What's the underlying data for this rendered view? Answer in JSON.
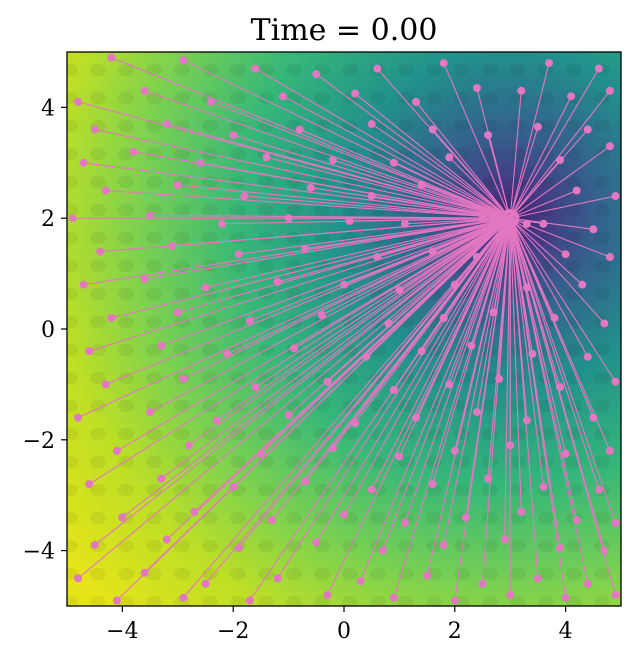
{
  "chart_data": {
    "type": "scatter",
    "title": "Time = 0.00",
    "xlabel": "",
    "ylabel": "",
    "xlim": [
      -5,
      5
    ],
    "ylim": [
      -5,
      5
    ],
    "x_ticks": [
      {
        "value": -4,
        "label": "−4"
      },
      {
        "value": -2,
        "label": "−2"
      },
      {
        "value": 0,
        "label": "0"
      },
      {
        "value": 2,
        "label": "2"
      },
      {
        "value": 4,
        "label": "4"
      }
    ],
    "y_ticks": [
      {
        "value": 4,
        "label": "4"
      },
      {
        "value": 2,
        "label": "2"
      },
      {
        "value": 0,
        "label": "0"
      },
      {
        "value": -2,
        "label": "−2"
      },
      {
        "value": -4,
        "label": "−4"
      }
    ],
    "background": "filled contour of a potential field with minimum at (3, 2); colormap viridis (low = dark purple, high = yellow)",
    "field_minimum": [
      3,
      2
    ],
    "grid": false,
    "legend": "none",
    "colors": {
      "particles": "#e377c2",
      "contour_low": "#3b2f7a",
      "contour_high": "#e5e41f"
    },
    "particles": [
      [
        -4.2,
        4.9
      ],
      [
        -2.9,
        4.85
      ],
      [
        -1.6,
        4.7
      ],
      [
        -0.5,
        4.6
      ],
      [
        0.6,
        4.7
      ],
      [
        1.8,
        4.8
      ],
      [
        3.7,
        4.8
      ],
      [
        4.6,
        4.7
      ],
      [
        -4.8,
        4.1
      ],
      [
        -3.6,
        4.3
      ],
      [
        -2.4,
        4.1
      ],
      [
        -1.1,
        4.2
      ],
      [
        0.2,
        4.25
      ],
      [
        1.3,
        4.1
      ],
      [
        2.4,
        4.35
      ],
      [
        3.2,
        4.3
      ],
      [
        4.1,
        4.2
      ],
      [
        4.8,
        4.3
      ],
      [
        -4.5,
        3.6
      ],
      [
        -3.2,
        3.7
      ],
      [
        -2.0,
        3.5
      ],
      [
        -0.8,
        3.6
      ],
      [
        0.5,
        3.7
      ],
      [
        1.6,
        3.6
      ],
      [
        2.6,
        3.5
      ],
      [
        3.5,
        3.65
      ],
      [
        4.4,
        3.6
      ],
      [
        -4.7,
        3.0
      ],
      [
        -3.8,
        3.2
      ],
      [
        -2.6,
        3.0
      ],
      [
        -1.4,
        3.1
      ],
      [
        -0.2,
        3.05
      ],
      [
        0.9,
        3.0
      ],
      [
        1.9,
        3.1
      ],
      [
        3.9,
        3.05
      ],
      [
        4.8,
        3.3
      ],
      [
        -4.3,
        2.5
      ],
      [
        -3.0,
        2.6
      ],
      [
        -1.8,
        2.4
      ],
      [
        -0.6,
        2.55
      ],
      [
        0.5,
        2.4
      ],
      [
        1.4,
        2.6
      ],
      [
        4.2,
        2.5
      ],
      [
        4.9,
        2.4
      ],
      [
        -4.9,
        2.0
      ],
      [
        -3.5,
        2.05
      ],
      [
        -2.2,
        1.9
      ],
      [
        -1.0,
        2.0
      ],
      [
        0.1,
        1.95
      ],
      [
        1.1,
        1.9
      ],
      [
        2.5,
        2.0
      ],
      [
        3.6,
        1.9
      ],
      [
        4.5,
        1.8
      ],
      [
        -4.4,
        1.4
      ],
      [
        -3.1,
        1.5
      ],
      [
        -1.9,
        1.35
      ],
      [
        -0.7,
        1.45
      ],
      [
        0.6,
        1.3
      ],
      [
        1.6,
        1.4
      ],
      [
        2.4,
        1.3
      ],
      [
        4.0,
        1.35
      ],
      [
        4.8,
        1.3
      ],
      [
        -4.7,
        0.8
      ],
      [
        -3.6,
        0.9
      ],
      [
        -2.5,
        0.75
      ],
      [
        -1.2,
        0.85
      ],
      [
        0.0,
        0.8
      ],
      [
        1.0,
        0.7
      ],
      [
        2.0,
        0.8
      ],
      [
        3.3,
        0.75
      ],
      [
        4.3,
        0.8
      ],
      [
        -4.2,
        0.2
      ],
      [
        -3.0,
        0.3
      ],
      [
        -1.7,
        0.15
      ],
      [
        -0.4,
        0.25
      ],
      [
        0.8,
        0.1
      ],
      [
        1.8,
        0.2
      ],
      [
        2.7,
        0.3
      ],
      [
        3.8,
        0.2
      ],
      [
        4.7,
        0.1
      ],
      [
        -4.6,
        -0.4
      ],
      [
        -3.3,
        -0.3
      ],
      [
        -2.1,
        -0.45
      ],
      [
        -0.9,
        -0.35
      ],
      [
        0.4,
        -0.5
      ],
      [
        1.4,
        -0.4
      ],
      [
        2.3,
        -0.3
      ],
      [
        3.4,
        -0.45
      ],
      [
        4.4,
        -0.5
      ],
      [
        -4.3,
        -1.0
      ],
      [
        -2.9,
        -0.9
      ],
      [
        -1.6,
        -1.05
      ],
      [
        -0.3,
        -0.95
      ],
      [
        0.9,
        -1.1
      ],
      [
        1.9,
        -1.0
      ],
      [
        2.8,
        -0.9
      ],
      [
        3.9,
        -1.05
      ],
      [
        4.9,
        -0.95
      ],
      [
        -4.8,
        -1.6
      ],
      [
        -3.5,
        -1.5
      ],
      [
        -2.3,
        -1.65
      ],
      [
        -1.0,
        -1.55
      ],
      [
        0.2,
        -1.7
      ],
      [
        1.3,
        -1.6
      ],
      [
        2.4,
        -1.5
      ],
      [
        3.3,
        -1.65
      ],
      [
        4.5,
        -1.6
      ],
      [
        -4.1,
        -2.2
      ],
      [
        -2.8,
        -2.1
      ],
      [
        -1.5,
        -2.25
      ],
      [
        -0.2,
        -2.15
      ],
      [
        1.0,
        -2.3
      ],
      [
        2.0,
        -2.2
      ],
      [
        3.0,
        -2.1
      ],
      [
        4.0,
        -2.25
      ],
      [
        4.8,
        -2.2
      ],
      [
        -4.6,
        -2.8
      ],
      [
        -3.3,
        -2.7
      ],
      [
        -2.0,
        -2.85
      ],
      [
        -0.7,
        -2.75
      ],
      [
        0.5,
        -2.9
      ],
      [
        1.6,
        -2.8
      ],
      [
        2.6,
        -2.7
      ],
      [
        3.6,
        -2.85
      ],
      [
        4.6,
        -2.9
      ],
      [
        -4.0,
        -3.4
      ],
      [
        -2.7,
        -3.3
      ],
      [
        -1.3,
        -3.45
      ],
      [
        0.0,
        -3.35
      ],
      [
        1.1,
        -3.5
      ],
      [
        2.2,
        -3.4
      ],
      [
        3.2,
        -3.3
      ],
      [
        4.2,
        -3.45
      ],
      [
        4.9,
        -3.5
      ],
      [
        -4.5,
        -3.9
      ],
      [
        -3.2,
        -3.8
      ],
      [
        -1.9,
        -3.95
      ],
      [
        -0.5,
        -3.85
      ],
      [
        0.7,
        -4.0
      ],
      [
        1.8,
        -3.9
      ],
      [
        2.9,
        -3.8
      ],
      [
        3.9,
        -3.95
      ],
      [
        4.7,
        -4.0
      ],
      [
        -4.8,
        -4.5
      ],
      [
        -3.6,
        -4.4
      ],
      [
        -2.5,
        -4.6
      ],
      [
        -1.2,
        -4.5
      ],
      [
        0.3,
        -4.55
      ],
      [
        1.5,
        -4.45
      ],
      [
        2.5,
        -4.6
      ],
      [
        3.5,
        -4.5
      ],
      [
        4.4,
        -4.6
      ],
      [
        -4.1,
        -4.9
      ],
      [
        -2.9,
        -4.85
      ],
      [
        -1.7,
        -4.9
      ],
      [
        -0.3,
        -4.8
      ],
      [
        0.9,
        -4.85
      ],
      [
        2.0,
        -4.9
      ],
      [
        3.0,
        -4.8
      ],
      [
        4.0,
        -4.85
      ],
      [
        4.9,
        -4.8
      ],
      [
        2.7,
        2.0
      ],
      [
        3.3,
        1.9
      ],
      [
        3.0,
        2.0
      ]
    ]
  }
}
